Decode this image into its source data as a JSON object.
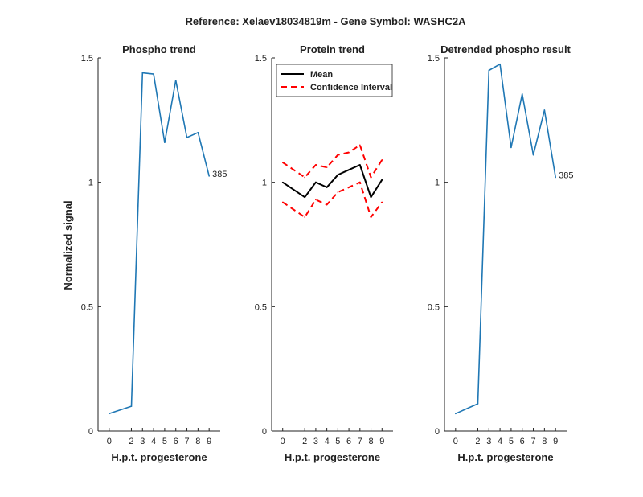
{
  "figure": {
    "suptitle": "Reference:  Xelaev18034819m - Gene Symbol:  WASHC2A",
    "ylabel": "Normalized signal"
  },
  "chart_data": [
    {
      "type": "line",
      "title": "Phospho trend",
      "xlabel": "H.p.t. progesterone",
      "ylabel": "Normalized signal",
      "x": [
        0,
        2,
        3,
        4,
        5,
        6,
        7,
        8,
        9
      ],
      "xlim": [
        -1,
        10
      ],
      "ylim": [
        0,
        1.5
      ],
      "yticks": [
        0,
        0.5,
        1,
        1.5
      ],
      "series": [
        {
          "color": "#1f77b4",
          "values": [
            0.07,
            0.1,
            1.44,
            1.435,
            1.16,
            1.41,
            1.18,
            1.2,
            1.025
          ]
        }
      ],
      "end_label": "385"
    },
    {
      "type": "line",
      "title": "Protein trend",
      "xlabel": "H.p.t. progesterone",
      "x": [
        0,
        2,
        3,
        4,
        5,
        6,
        7,
        8,
        9
      ],
      "xlim": [
        -1,
        10
      ],
      "ylim": [
        0,
        1.5
      ],
      "yticks": [
        0,
        0.5,
        1,
        1.5
      ],
      "legend_position": "top-left",
      "series": [
        {
          "name": "Mean",
          "color": "#000000",
          "style": "solid",
          "values": [
            1.0,
            0.94,
            1.0,
            0.98,
            1.03,
            1.05,
            1.07,
            0.94,
            1.01
          ]
        },
        {
          "name": "Confidence Interval",
          "color": "#ff0000",
          "style": "dashed",
          "values": [
            1.08,
            1.02,
            1.07,
            1.06,
            1.11,
            1.12,
            1.15,
            1.02,
            1.09
          ]
        },
        {
          "color": "#ff0000",
          "style": "dashed",
          "values": [
            0.92,
            0.86,
            0.93,
            0.91,
            0.96,
            0.98,
            1.0,
            0.86,
            0.92
          ]
        }
      ]
    },
    {
      "type": "line",
      "title": "Detrended phospho result",
      "xlabel": "H.p.t. progesterone",
      "x": [
        0,
        2,
        3,
        4,
        5,
        6,
        7,
        8,
        9
      ],
      "xlim": [
        -1,
        10
      ],
      "ylim": [
        0,
        1.5
      ],
      "yticks": [
        0,
        0.5,
        1,
        1.5
      ],
      "series": [
        {
          "color": "#1f77b4",
          "values": [
            0.07,
            0.11,
            1.45,
            1.475,
            1.14,
            1.355,
            1.11,
            1.29,
            1.02
          ]
        }
      ],
      "end_label": "385"
    }
  ]
}
